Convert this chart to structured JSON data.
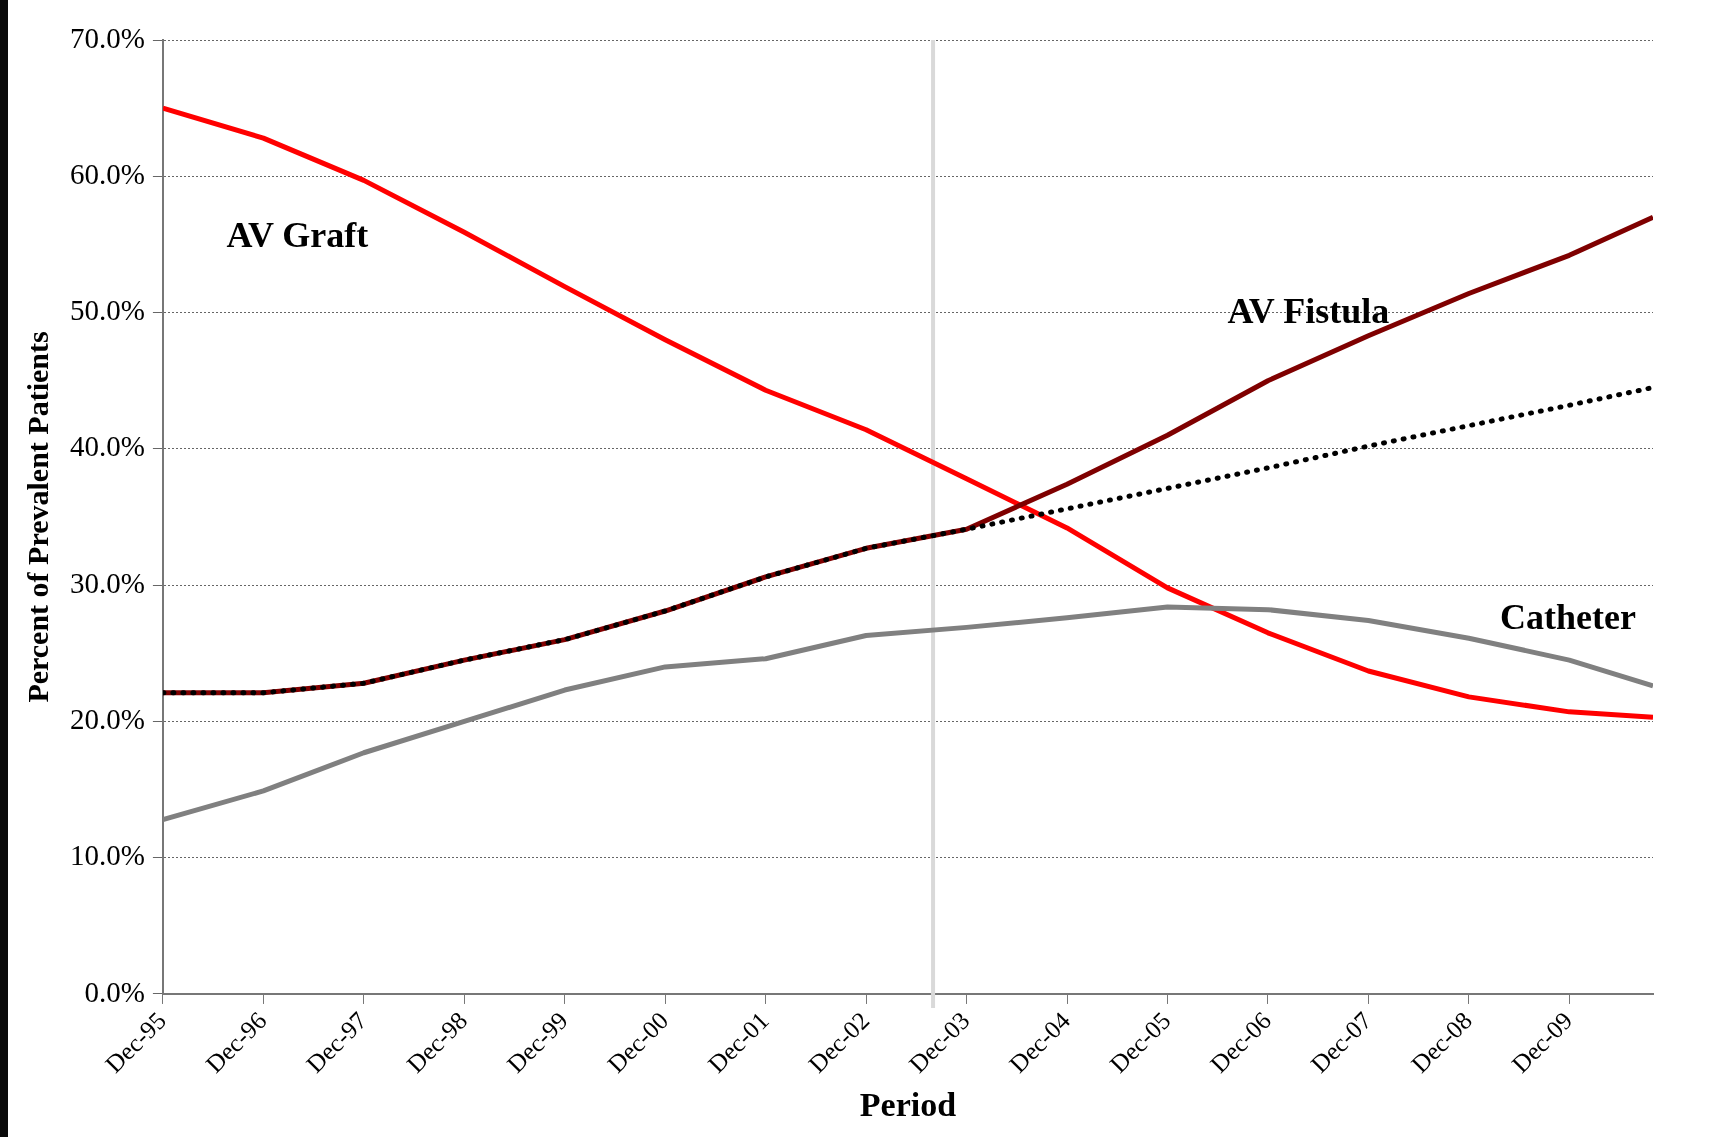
{
  "chart_data": {
    "type": "line",
    "xlabel": "Period",
    "ylabel": "Percent of Prevalent Patients",
    "x": [
      "1995-12",
      "1996-12",
      "1997-12",
      "1998-12",
      "1999-12",
      "2000-12",
      "2001-12",
      "2002-12",
      "2003-12",
      "2004-12",
      "2005-12",
      "2006-12",
      "2007-12",
      "2008-12",
      "2009-12",
      "2010-10"
    ],
    "xlim": [
      "1995-12",
      "2010-10"
    ],
    "xticks": [
      {
        "value": "1995-12",
        "label": "Dec-95"
      },
      {
        "value": "1996-12",
        "label": "Dec-96"
      },
      {
        "value": "1997-12",
        "label": "Dec-97"
      },
      {
        "value": "1998-12",
        "label": "Dec-98"
      },
      {
        "value": "1999-12",
        "label": "Dec-99"
      },
      {
        "value": "2000-12",
        "label": "Dec-00"
      },
      {
        "value": "2001-12",
        "label": "Dec-01"
      },
      {
        "value": "2002-12",
        "label": "Dec-02"
      },
      {
        "value": "2003-12",
        "label": "Dec-03"
      },
      {
        "value": "2004-12",
        "label": "Dec-04"
      },
      {
        "value": "2005-12",
        "label": "Dec-05"
      },
      {
        "value": "2006-12",
        "label": "Dec-06"
      },
      {
        "value": "2007-12",
        "label": "Dec-07"
      },
      {
        "value": "2008-12",
        "label": "Dec-08"
      },
      {
        "value": "2009-12",
        "label": "Dec-09"
      }
    ],
    "ylim": [
      0,
      70
    ],
    "yticks": [
      {
        "value": 0,
        "label": "0.0%"
      },
      {
        "value": 10,
        "label": "10.0%"
      },
      {
        "value": 20,
        "label": "20.0%"
      },
      {
        "value": 30,
        "label": "30.0%"
      },
      {
        "value": 40,
        "label": "40.0%"
      },
      {
        "value": 50,
        "label": "50.0%"
      },
      {
        "value": 60,
        "label": "60.0%"
      },
      {
        "value": 70,
        "label": "70.0%"
      }
    ],
    "grid": "y",
    "legend": false,
    "marker": "none",
    "series": [
      {
        "name": "AV Graft",
        "color": "#ff0000",
        "line_style": "solid",
        "values": [
          65.0,
          62.8,
          59.7,
          55.9,
          51.9,
          48.0,
          44.3,
          41.4,
          37.8,
          34.2,
          29.8,
          26.5,
          23.7,
          21.8,
          20.7,
          20.3
        ]
      },
      {
        "name": "AV Fistula",
        "color": "#7f0000",
        "line_style": "solid",
        "values": [
          22.1,
          22.1,
          22.8,
          24.5,
          26.0,
          28.1,
          30.6,
          32.7,
          34.1,
          37.4,
          41.0,
          45.0,
          48.3,
          51.4,
          54.2,
          57.0
        ]
      },
      {
        "color": "#000000",
        "line_style": "dotted",
        "values": [
          22.1,
          22.1,
          22.8,
          24.5,
          26.0,
          28.1,
          30.6,
          32.7,
          34.1,
          35.6,
          37.1,
          38.6,
          40.2,
          41.7,
          43.2,
          44.5
        ]
      },
      {
        "name": "Catheter",
        "color": "#808080",
        "line_style": "solid",
        "values": [
          12.8,
          14.9,
          17.7,
          20.0,
          22.3,
          24.0,
          24.6,
          26.3,
          26.9,
          27.6,
          28.4,
          28.2,
          27.4,
          26.1,
          24.5,
          22.6
        ]
      }
    ],
    "ref_lines": [
      {
        "axis": "x",
        "value": "2003-08",
        "color": "#d9d9d9",
        "line_style": "solid"
      }
    ]
  }
}
